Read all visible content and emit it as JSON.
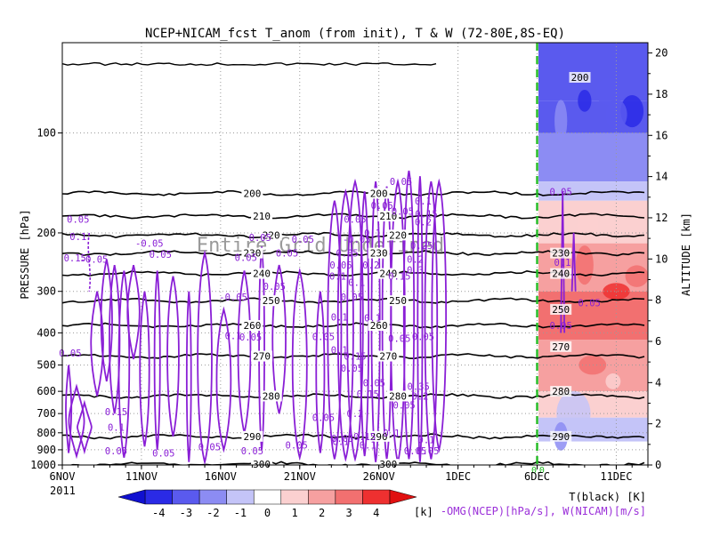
{
  "chart_data": {
    "type": "heatmap",
    "title": "NCEP+NICAM_fcst T_anom (from init), T & W  (72-80E,8S-EQ)",
    "xlabel": "",
    "ylabel": "PRESSURE [hPa]",
    "y2label": "ALTITUDE [km]",
    "year_label": "2011",
    "watermark": "Entire Grid Undefined",
    "x_ticks": [
      "6NOV",
      "11NOV",
      "16NOV",
      "21NOV",
      "26NOV",
      "1DEC",
      "6DEC",
      "11DEC"
    ],
    "x_tick_days": [
      0,
      5,
      10,
      15,
      20,
      25,
      30,
      35
    ],
    "x_range": [
      0,
      37
    ],
    "y_ticks": [
      100,
      200,
      300,
      400,
      500,
      600,
      700,
      800,
      900,
      1000
    ],
    "y_range_hpa": [
      1000,
      50
    ],
    "y2_ticks": [
      0,
      2,
      4,
      6,
      8,
      10,
      12,
      14,
      16,
      18,
      20
    ],
    "forecast_start_day": 30,
    "ncep_data_end_day": 23.7,
    "colorbar": {
      "ticks": [
        "-4",
        "-3",
        "-2",
        "-1",
        "0",
        "1",
        "2",
        "3",
        "4"
      ],
      "unit": "[k]",
      "colors": [
        "#2a2ae6",
        "#5a5aee",
        "#8c8cf3",
        "#c4c4f8",
        "#ffffff",
        "#fbd0d0",
        "#f6a0a0",
        "#f27070",
        "#ee3030"
      ]
    },
    "legend_lines": {
      "t_label": "T(black) [K]",
      "w_label": "-OMG(NCEP)[hPa/s], W(NICAM)[m/s]"
    },
    "temperature_contours": [
      {
        "label": "200",
        "hpa": 152
      },
      {
        "label": "210",
        "hpa": 178
      },
      {
        "label": "220",
        "hpa": 203
      },
      {
        "label": "230",
        "hpa": 230
      },
      {
        "label": "240",
        "hpa": 265
      },
      {
        "label": "250",
        "hpa": 320
      },
      {
        "label": "260",
        "hpa": 380
      },
      {
        "label": "270",
        "hpa": 470
      },
      {
        "label": "280",
        "hpa": 620
      },
      {
        "label": "290",
        "hpa": 820
      },
      {
        "label": "300",
        "hpa": 995
      }
    ],
    "forecast_contour_labels": [
      {
        "label": "200",
        "hpa": 68
      },
      {
        "label": "230",
        "hpa": 230
      },
      {
        "label": "240",
        "hpa": 265
      },
      {
        "label": "250",
        "hpa": 340
      },
      {
        "label": "270",
        "hpa": 440
      },
      {
        "label": "280",
        "hpa": 600
      },
      {
        "label": "290",
        "hpa": 820
      }
    ],
    "omega_labels": [
      {
        "label": "0.05",
        "day": 1.0,
        "hpa": 182
      },
      {
        "label": "0.1",
        "day": 1.0,
        "hpa": 205
      },
      {
        "label": "0.15",
        "day": 0.8,
        "hpa": 238
      },
      {
        "label": "-0.05",
        "day": 2.0,
        "hpa": 240
      },
      {
        "label": "-0.05",
        "day": 5.5,
        "hpa": 215
      },
      {
        "label": "0.05",
        "day": 6.2,
        "hpa": 232
      },
      {
        "label": "0.05",
        "day": 12.5,
        "hpa": 206
      },
      {
        "label": "0.05",
        "day": 15.2,
        "hpa": 209
      },
      {
        "label": "-0.05",
        "day": 18.6,
        "hpa": 209
      },
      {
        "label": "0.05",
        "day": 11.6,
        "hpa": 237
      },
      {
        "label": "0.05",
        "day": 14.2,
        "hpa": 230
      },
      {
        "label": "-0.05",
        "day": 10.8,
        "hpa": 312
      },
      {
        "label": "0.05",
        "day": 13.4,
        "hpa": 290
      },
      {
        "label": "0.1",
        "day": 10.8,
        "hpa": 408
      },
      {
        "label": "0.05",
        "day": 11.9,
        "hpa": 412
      },
      {
        "label": "0.05",
        "day": 0.5,
        "hpa": 460
      },
      {
        "label": "0.15",
        "day": 3.4,
        "hpa": 690
      },
      {
        "label": "0.1",
        "day": 3.4,
        "hpa": 770
      },
      {
        "label": "0.05",
        "day": 3.4,
        "hpa": 905
      },
      {
        "label": "0.05",
        "day": 6.4,
        "hpa": 920
      },
      {
        "label": "0.05",
        "day": 9.3,
        "hpa": 880
      },
      {
        "label": "0.05",
        "day": 12.0,
        "hpa": 905
      },
      {
        "label": "0.05",
        "day": 14.8,
        "hpa": 870
      },
      {
        "label": "0.05",
        "day": 17.7,
        "hpa": 830
      },
      {
        "label": "0.05",
        "day": 22.3,
        "hpa": 905
      },
      {
        "label": "0.05",
        "day": 21.4,
        "hpa": 140
      },
      {
        "label": "0.05",
        "day": 20.2,
        "hpa": 165
      },
      {
        "label": "0.05",
        "day": 21.5,
        "hpa": 172
      },
      {
        "label": "0.15",
        "day": 23.0,
        "hpa": 175
      },
      {
        "label": "0.1",
        "day": 22.8,
        "hpa": 160
      },
      {
        "label": "0.2",
        "day": 22.8,
        "hpa": 185
      },
      {
        "label": "0.05",
        "day": 18.5,
        "hpa": 182
      },
      {
        "label": "0.1",
        "day": 19.6,
        "hpa": 200
      },
      {
        "label": "0.05",
        "day": 18.0,
        "hpa": 230
      },
      {
        "label": "0.25",
        "day": 22.7,
        "hpa": 218
      },
      {
        "label": "0.2",
        "day": 22.3,
        "hpa": 240
      },
      {
        "label": "0.2",
        "day": 19.5,
        "hpa": 250
      },
      {
        "label": "0.3",
        "day": 22.3,
        "hpa": 258
      },
      {
        "label": "0.15",
        "day": 21.3,
        "hpa": 270
      },
      {
        "label": "0.1",
        "day": 17.4,
        "hpa": 270
      },
      {
        "label": "0.05",
        "day": 17.6,
        "hpa": 250
      },
      {
        "label": "0.1",
        "day": 18.6,
        "hpa": 282
      },
      {
        "label": "0.05",
        "day": 18.3,
        "hpa": 312
      },
      {
        "label": "0.1",
        "day": 17.5,
        "hpa": 358
      },
      {
        "label": "0.1",
        "day": 19.6,
        "hpa": 360
      },
      {
        "label": "0.05",
        "day": 16.5,
        "hpa": 410
      },
      {
        "label": "0.05",
        "day": 21.3,
        "hpa": 415
      },
      {
        "label": "0.05",
        "day": 22.8,
        "hpa": 410
      },
      {
        "label": "0.1",
        "day": 17.5,
        "hpa": 450
      },
      {
        "label": "0.15",
        "day": 18.5,
        "hpa": 470
      },
      {
        "label": "0.05",
        "day": 18.3,
        "hpa": 510
      },
      {
        "label": "0.05",
        "day": 19.7,
        "hpa": 565
      },
      {
        "label": "0.15",
        "day": 19.3,
        "hpa": 610
      },
      {
        "label": "0.35",
        "day": 22.5,
        "hpa": 580
      },
      {
        "label": "0.2",
        "day": 22.6,
        "hpa": 620
      },
      {
        "label": "0.05",
        "day": 21.6,
        "hpa": 660
      },
      {
        "label": "0.05",
        "day": 16.5,
        "hpa": 720
      },
      {
        "label": "0.2",
        "day": 18.5,
        "hpa": 700
      },
      {
        "label": "0.15",
        "day": 19.1,
        "hpa": 820
      },
      {
        "label": "0.1",
        "day": 20.8,
        "hpa": 800
      },
      {
        "label": "0.1",
        "day": 17.6,
        "hpa": 850
      },
      {
        "label": "0.1",
        "day": 23.0,
        "hpa": 840
      },
      {
        "label": "0.1",
        "day": 19.3,
        "hpa": 870
      },
      {
        "label": "0.05",
        "day": 23.1,
        "hpa": 905
      },
      {
        "label": "0.05",
        "day": 31.5,
        "hpa": 150
      },
      {
        "label": "0.1",
        "day": 31.6,
        "hpa": 245
      },
      {
        "label": "0.05",
        "day": 33.3,
        "hpa": 325
      },
      {
        "label": "0.05",
        "day": 31.5,
        "hpa": 380
      }
    ],
    "zero_labels": [
      {
        "label": "0",
        "day": 29.8
      },
      {
        "label": "0",
        "day": 30.3
      }
    ]
  }
}
